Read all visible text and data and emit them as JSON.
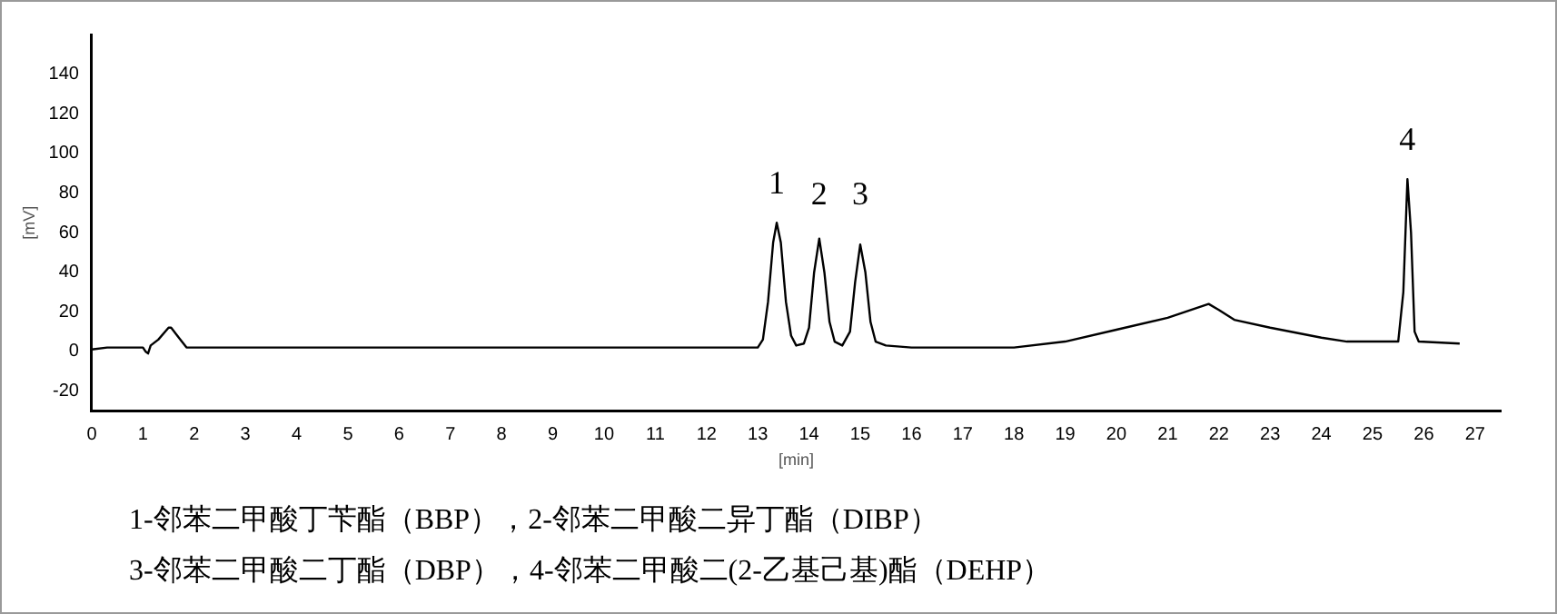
{
  "chart_data": {
    "type": "line",
    "xlabel": "[min]",
    "ylabel": "[mV]",
    "xlim": [
      0,
      27.5
    ],
    "ylim": [
      -30,
      160
    ],
    "xticks": [
      0,
      1,
      2,
      3,
      4,
      5,
      6,
      7,
      8,
      9,
      10,
      11,
      12,
      13,
      14,
      15,
      16,
      17,
      18,
      19,
      20,
      21,
      22,
      23,
      24,
      25,
      26,
      27
    ],
    "yticks": [
      -20,
      0,
      20,
      40,
      60,
      80,
      100,
      120,
      140
    ],
    "grid": false,
    "legend": false,
    "marker": "none",
    "line_style": "solid",
    "series": [
      {
        "color": "#000000",
        "x": [
          0,
          0.3,
          0.9,
          1.0,
          1.05,
          1.1,
          1.15,
          1.3,
          1.5,
          1.55,
          1.7,
          1.85,
          2.2,
          2.25,
          8,
          9,
          13.0,
          13.1,
          13.2,
          13.3,
          13.37,
          13.45,
          13.55,
          13.65,
          13.75,
          13.9,
          14.0,
          14.1,
          14.2,
          14.3,
          14.4,
          14.5,
          14.65,
          14.8,
          14.9,
          15.0,
          15.1,
          15.2,
          15.3,
          15.5,
          16,
          17,
          18,
          19,
          20,
          21,
          21.8,
          22,
          22.3,
          23,
          24,
          24.5,
          25.5,
          25.6,
          25.68,
          25.75,
          25.82,
          25.9,
          26.7
        ],
        "values": [
          1,
          2,
          2,
          2,
          0,
          -1,
          3,
          6,
          12,
          12,
          7,
          2,
          2,
          2,
          2,
          2,
          2,
          6,
          25,
          55,
          65,
          55,
          25,
          8,
          3,
          4,
          12,
          40,
          57,
          40,
          15,
          5,
          3,
          10,
          35,
          54,
          40,
          15,
          5,
          3,
          2,
          2,
          2,
          5,
          11,
          17,
          24,
          21,
          16,
          12,
          7,
          5,
          5,
          30,
          87,
          60,
          10,
          5,
          4
        ]
      }
    ],
    "annotations": [
      {
        "text": "1",
        "x": 13.37,
        "y": 65
      },
      {
        "text": "2",
        "x": 14.2,
        "y": 57
      },
      {
        "text": "3",
        "x": 15.0,
        "y": 54
      },
      {
        "text": "4",
        "x": 25.68,
        "y": 87
      },
      "1-邻苯二甲酸丁苄酯（BBP），2-邻苯二甲酸二异丁酯（DIBP）",
      "3-邻苯二甲酸二丁酯（DBP），4-邻苯二甲酸二(2-乙基己基)酯（DEHP）"
    ]
  }
}
